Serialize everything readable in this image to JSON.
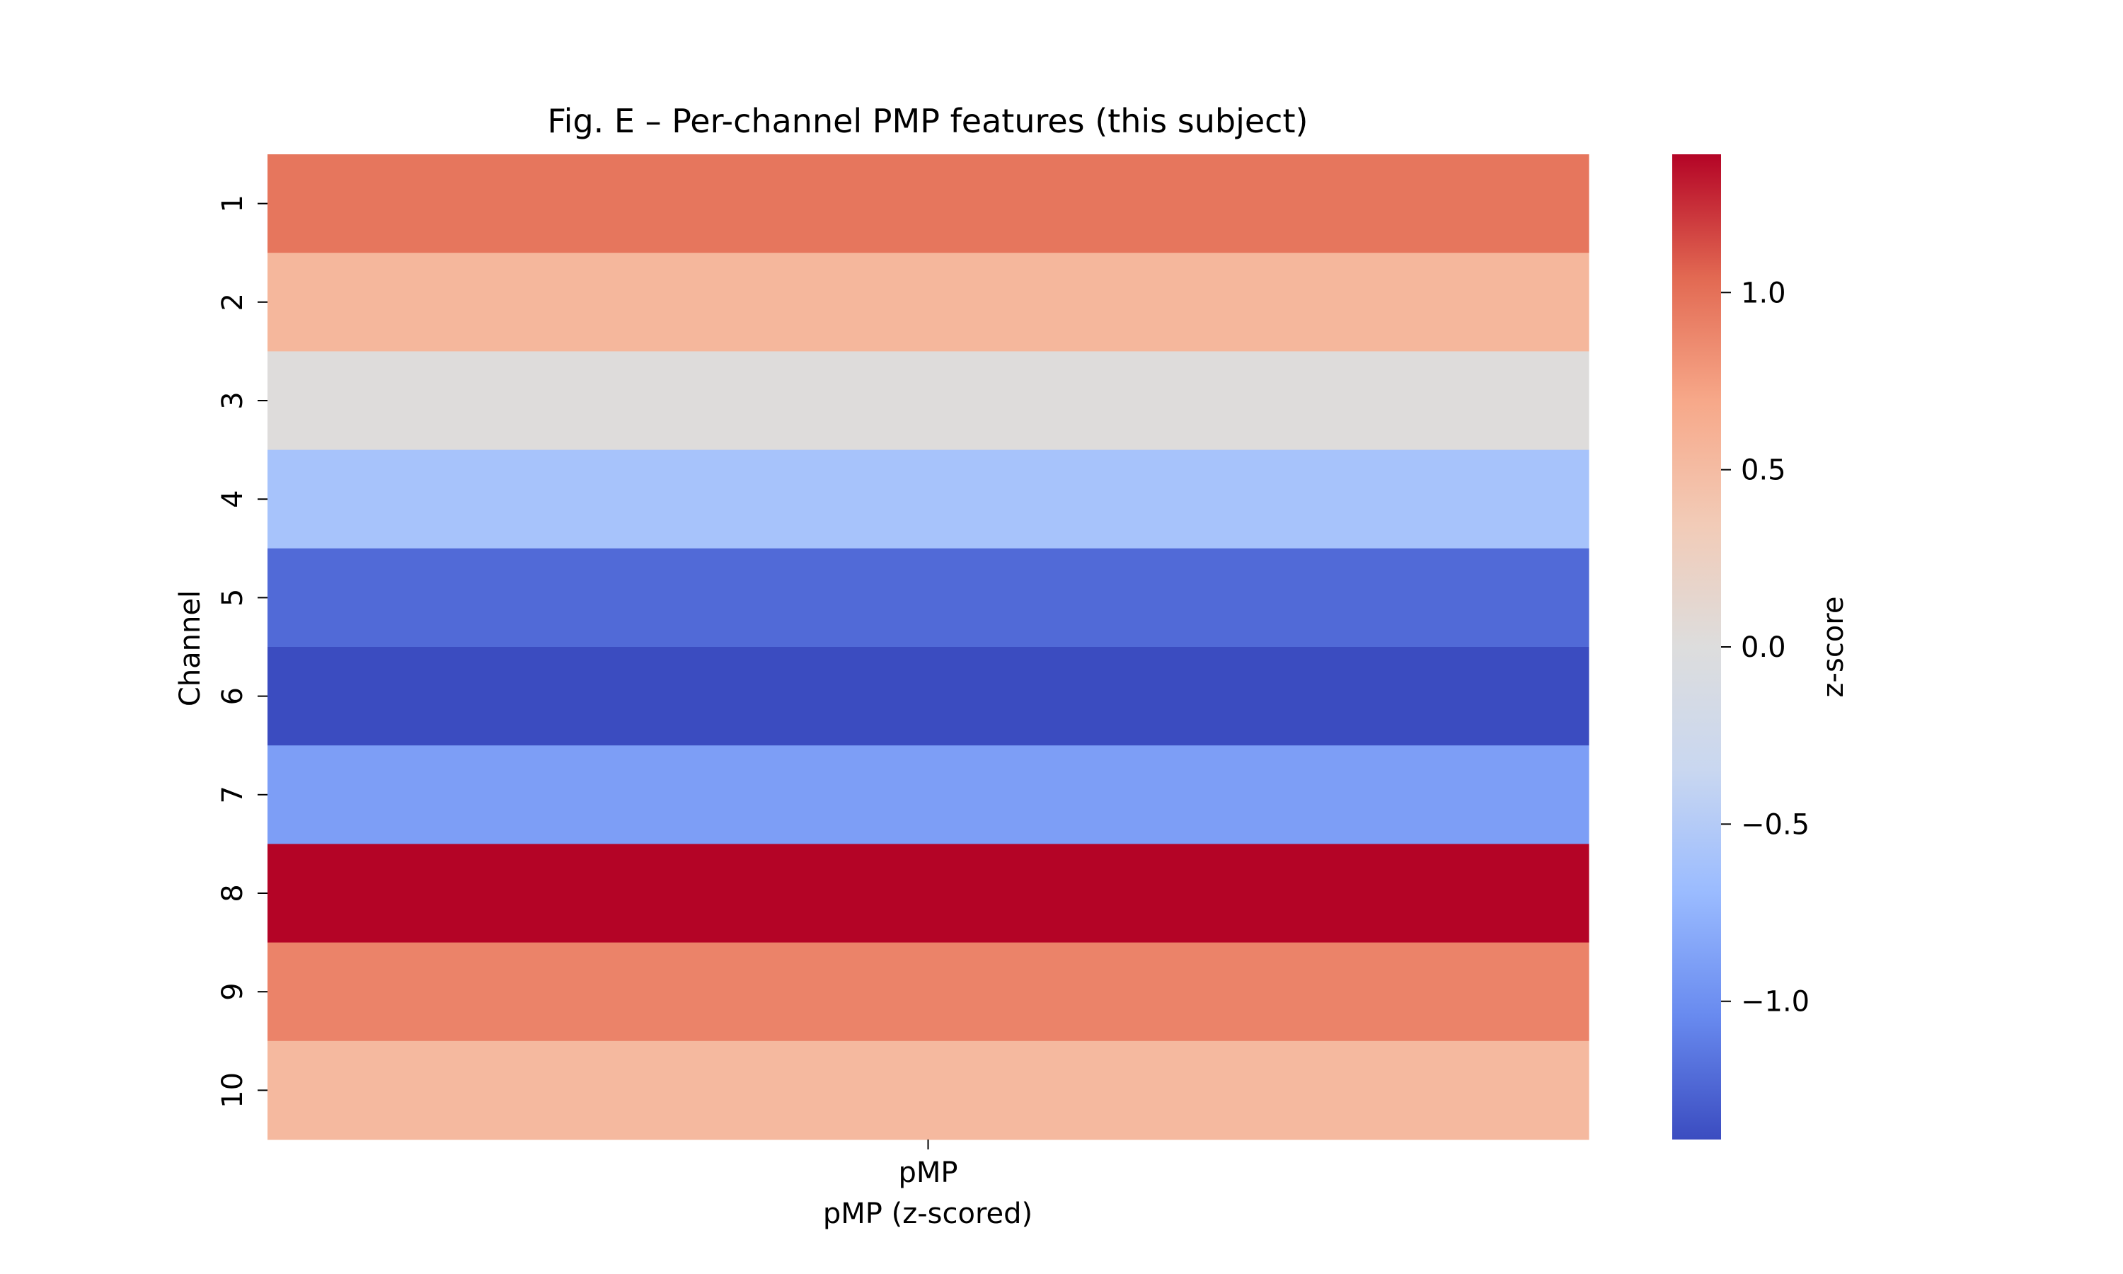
{
  "chart_data": {
    "type": "heatmap",
    "title": "Fig. E – Per-channel PMP features (this subject)",
    "xlabel": "pMP (z-scored)",
    "ylabel": "Channel",
    "columns": [
      "pMP"
    ],
    "rows": [
      "1",
      "2",
      "3",
      "4",
      "5",
      "6",
      "7",
      "8",
      "9",
      "10"
    ],
    "values": [
      [
        0.97
      ],
      [
        0.55
      ],
      [
        0.02
      ],
      [
        -0.6
      ],
      [
        -1.22
      ],
      [
        -1.39
      ],
      [
        -0.9
      ],
      [
        1.39
      ],
      [
        0.9
      ],
      [
        0.53
      ]
    ],
    "colorbar": {
      "label": "z-score",
      "vmin": -1.39,
      "vmax": 1.39,
      "ticks": [
        1.0,
        0.5,
        0.0,
        -0.5,
        -1.0
      ],
      "tick_labels": [
        "1.0",
        "0.5",
        "0.0",
        "−0.5",
        "−1.0"
      ]
    },
    "colormap": "coolwarm",
    "colormap_stops": [
      "#3b4cc0",
      "#688aef",
      "#9abbff",
      "#c9d7f0",
      "#dddddd",
      "#f2cbb7",
      "#f7a889",
      "#e26952",
      "#b40426"
    ]
  }
}
